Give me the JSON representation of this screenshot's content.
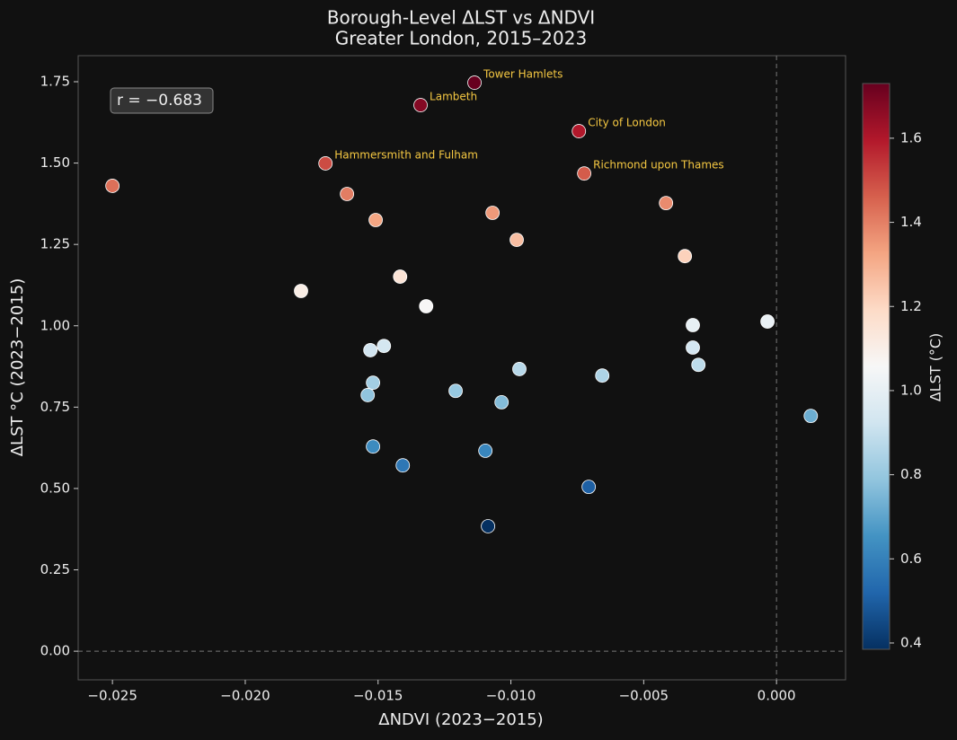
{
  "chart_data": {
    "type": "scatter",
    "title": "Borough-Level ΔLST vs ΔNDVI",
    "subtitle": "Greater London, 2015–2023",
    "x_label": "ΔNDVI (2023−2015)",
    "y_label": "ΔLST °C (2023−2015)",
    "annotation": "r = −0.683",
    "x": [
      -0.025,
      -0.01698,
      -0.01617,
      -0.01509,
      -0.0179,
      -0.01417,
      -0.01319,
      -0.0134,
      -0.01137,
      -0.00744,
      -0.00724,
      -0.01069,
      -0.00978,
      -0.00416,
      -0.00345,
      -0.01529,
      -0.01478,
      -0.01519,
      -0.01539,
      -0.01208,
      -0.00968,
      -0.01035,
      -0.00656,
      -0.01519,
      -0.01407,
      -0.01096,
      -0.00707,
      -0.01086,
      -0.00315,
      -0.00315,
      -0.00294,
      -0.00034,
      0.00129
    ],
    "values": [
      1.43,
      1.499,
      1.405,
      1.325,
      1.107,
      1.151,
      1.06,
      1.678,
      1.747,
      1.598,
      1.468,
      1.347,
      1.264,
      1.377,
      1.214,
      0.925,
      0.938,
      0.825,
      0.787,
      0.8,
      0.867,
      0.765,
      0.847,
      0.629,
      0.571,
      0.616,
      0.505,
      0.384,
      1.002,
      0.933,
      0.88,
      1.013,
      0.723
    ],
    "point_labels": [
      null,
      "Hammersmith and Fulham",
      null,
      null,
      null,
      null,
      null,
      "Lambeth",
      "Tower Hamlets",
      "City of London",
      "Richmond upon Thames",
      null,
      null,
      null,
      null,
      null,
      null,
      null,
      null,
      null,
      null,
      null,
      null,
      null,
      null,
      null,
      null,
      null,
      null,
      null,
      null,
      null,
      null
    ],
    "xlim": [
      -0.02629,
      0.0026
    ],
    "ylim": [
      -0.088,
      1.83
    ],
    "xticks": [
      {
        "value": -0.025,
        "label": "−0.025"
      },
      {
        "value": -0.02,
        "label": "−0.020"
      },
      {
        "value": -0.015,
        "label": "−0.015"
      },
      {
        "value": -0.01,
        "label": "−0.010"
      },
      {
        "value": -0.005,
        "label": "−0.005"
      },
      {
        "value": 0,
        "label": "0.000"
      }
    ],
    "yticks": [
      {
        "value": 0,
        "label": "0.00"
      },
      {
        "value": 0.25,
        "label": "0.25"
      },
      {
        "value": 0.5,
        "label": "0.50"
      },
      {
        "value": 0.75,
        "label": "0.75"
      },
      {
        "value": 1,
        "label": "1.00"
      },
      {
        "value": 1.25,
        "label": "1.25"
      },
      {
        "value": 1.5,
        "label": "1.50"
      },
      {
        "value": 1.75,
        "label": "1.75"
      }
    ],
    "reference_lines": {
      "x": 0,
      "y": 0
    },
    "colormap": "RdBu_r",
    "colorbar_label": "ΔLST (°C)",
    "clim": [
      0.385,
      1.73
    ],
    "colorbar_ticks": [
      0.4,
      0.6,
      0.8,
      {
        "value": 1,
        "label": "1.0"
      },
      1.2,
      1.4,
      1.6
    ]
  }
}
